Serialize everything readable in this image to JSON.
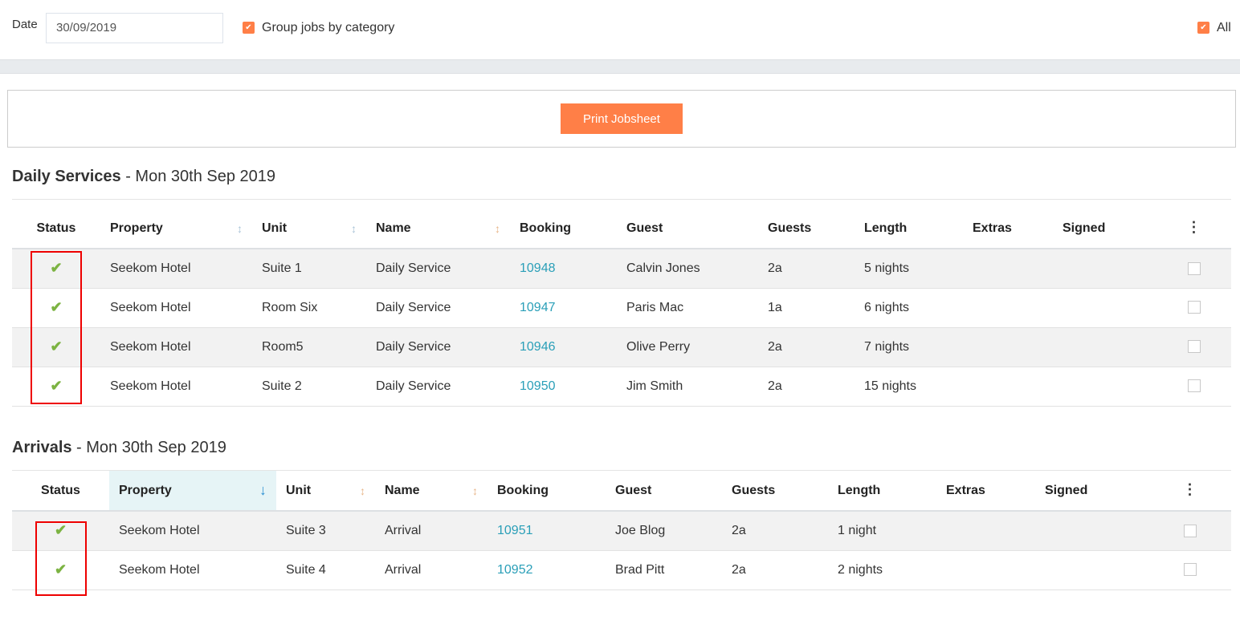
{
  "filters": {
    "date_label": "Date",
    "date_value": "30/09/2019",
    "group_label": "Group jobs by category",
    "group_checked": true,
    "all_label": "All",
    "all_checked": true
  },
  "print_button": "Print Jobsheet",
  "accent": "#ff7f47",
  "sections": [
    {
      "title": "Daily Services",
      "date": " - Mon 30th Sep 2019",
      "headers": [
        "Status",
        "Property",
        "Unit",
        "Name",
        "Booking",
        "Guest",
        "Guests",
        "Length",
        "Extras",
        "Signed"
      ],
      "rows": [
        {
          "status": "✔",
          "property": "Seekom Hotel",
          "unit": "Suite 1",
          "name": "Daily Service",
          "booking": "10948",
          "guest": "Calvin Jones",
          "guests": "2a",
          "length": "5 nights",
          "extras": "",
          "signed": ""
        },
        {
          "status": "✔",
          "property": "Seekom Hotel",
          "unit": "Room Six",
          "name": "Daily Service",
          "booking": "10947",
          "guest": "Paris Mac",
          "guests": "1a",
          "length": "6 nights",
          "extras": "",
          "signed": ""
        },
        {
          "status": "✔",
          "property": "Seekom Hotel",
          "unit": "Room5",
          "name": "Daily Service",
          "booking": "10946",
          "guest": "Olive Perry",
          "guests": "2a",
          "length": "7 nights",
          "extras": "",
          "signed": ""
        },
        {
          "status": "✔",
          "property": "Seekom Hotel",
          "unit": "Suite 2",
          "name": "Daily Service",
          "booking": "10950",
          "guest": "Jim Smith",
          "guests": "2a",
          "length": "15 nights",
          "extras": "",
          "signed": ""
        }
      ]
    },
    {
      "title": "Arrivals",
      "date": " - Mon 30th Sep 2019",
      "headers": [
        "Status",
        "Property",
        "Unit",
        "Name",
        "Booking",
        "Guest",
        "Guests",
        "Length",
        "Extras",
        "Signed"
      ],
      "sorted_column": "Property",
      "sort_direction": "descending",
      "rows": [
        {
          "status": "✔",
          "property": "Seekom Hotel",
          "unit": "Suite 3",
          "name": "Arrival",
          "booking": "10951",
          "guest": "Joe Blog",
          "guests": "2a",
          "length": "1 night",
          "extras": "",
          "signed": ""
        },
        {
          "status": "✔",
          "property": "Seekom Hotel",
          "unit": "Suite 4",
          "name": "Arrival",
          "booking": "10952",
          "guest": "Brad Pitt",
          "guests": "2a",
          "length": "2 nights",
          "extras": "",
          "signed": ""
        }
      ]
    }
  ]
}
